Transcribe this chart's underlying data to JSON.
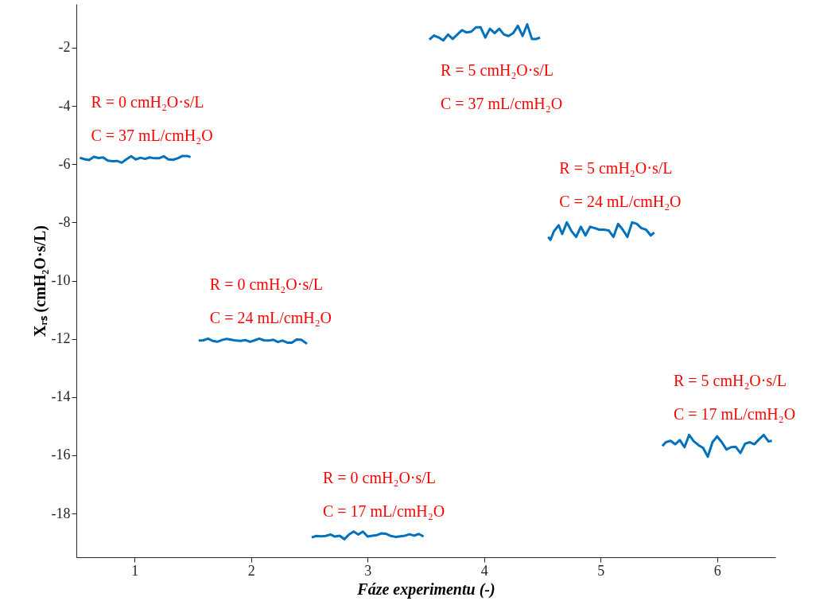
{
  "chart_data": {
    "type": "line",
    "xlabel": "Fáze experimentu (-)",
    "ylabel": "Xᵣₛ (cmH₂O·s/L)",
    "xlim": [
      0.5,
      6.5
    ],
    "ylim": [
      -19.5,
      -0.5
    ],
    "xticks": [
      1,
      2,
      3,
      4,
      5,
      6
    ],
    "yticks": [
      -18,
      -16,
      -14,
      -12,
      -10,
      -8,
      -6,
      -4,
      -2
    ],
    "grid": false,
    "legend": false,
    "marker": "none",
    "line_style": "solid",
    "series": [
      {
        "color": "#0072bd",
        "x": [
          0.53,
          0.57,
          0.61,
          0.65,
          0.69,
          0.73,
          0.77,
          0.81,
          0.85,
          0.89,
          0.93,
          0.97,
          1.01,
          1.05,
          1.09,
          1.13,
          1.17,
          1.21,
          1.25,
          1.29,
          1.33,
          1.37,
          1.41,
          1.45,
          1.48
        ],
        "values": [
          -5.78,
          -5.83,
          -5.86,
          -5.75,
          -5.79,
          -5.77,
          -5.88,
          -5.9,
          -5.89,
          -5.95,
          -5.83,
          -5.73,
          -5.84,
          -5.78,
          -5.82,
          -5.77,
          -5.8,
          -5.8,
          -5.73,
          -5.84,
          -5.85,
          -5.8,
          -5.72,
          -5.72,
          -5.76
        ]
      },
      {
        "color": "#0072bd",
        "x": [
          1.55,
          1.59,
          1.63,
          1.67,
          1.71,
          1.75,
          1.79,
          1.83,
          1.87,
          1.91,
          1.95,
          1.99,
          2.03,
          2.07,
          2.11,
          2.15,
          2.19,
          2.23,
          2.27,
          2.31,
          2.35,
          2.39,
          2.43,
          2.48
        ],
        "values": [
          -12.06,
          -12.05,
          -11.99,
          -12.07,
          -12.1,
          -12.04,
          -12.0,
          -12.03,
          -12.06,
          -12.07,
          -12.04,
          -12.1,
          -12.05,
          -11.99,
          -12.05,
          -12.06,
          -12.03,
          -12.11,
          -12.06,
          -12.13,
          -12.13,
          -12.02,
          -12.03,
          -12.17
        ]
      },
      {
        "color": "#0072bd",
        "x": [
          2.52,
          2.56,
          2.6,
          2.64,
          2.68,
          2.72,
          2.76,
          2.8,
          2.84,
          2.88,
          2.92,
          2.96,
          3.0,
          3.04,
          3.08,
          3.12,
          3.16,
          3.2,
          3.24,
          3.28,
          3.32,
          3.36,
          3.4,
          3.44,
          3.48
        ],
        "values": [
          -18.82,
          -18.77,
          -18.78,
          -18.77,
          -18.72,
          -18.79,
          -18.76,
          -18.88,
          -18.72,
          -18.62,
          -18.72,
          -18.62,
          -18.79,
          -18.76,
          -18.74,
          -18.68,
          -18.7,
          -18.77,
          -18.8,
          -18.78,
          -18.76,
          -18.71,
          -18.76,
          -18.7,
          -18.79
        ]
      },
      {
        "color": "#0072bd",
        "x": [
          3.53,
          3.57,
          3.61,
          3.65,
          3.69,
          3.73,
          3.77,
          3.81,
          3.85,
          3.89,
          3.93,
          3.97,
          4.01,
          4.05,
          4.09,
          4.13,
          4.17,
          4.21,
          4.25,
          4.29,
          4.33,
          4.37,
          4.41,
          4.45,
          4.48
        ],
        "values": [
          -1.72,
          -1.58,
          -1.65,
          -1.75,
          -1.55,
          -1.7,
          -1.55,
          -1.4,
          -1.48,
          -1.45,
          -1.3,
          -1.3,
          -1.65,
          -1.35,
          -1.5,
          -1.35,
          -1.55,
          -1.6,
          -1.5,
          -1.25,
          -1.6,
          -1.2,
          -1.7,
          -1.7,
          -1.65
        ]
      },
      {
        "color": "#0072bd",
        "x": [
          4.55,
          4.57,
          4.6,
          4.64,
          4.67,
          4.71,
          4.75,
          4.79,
          4.83,
          4.87,
          4.91,
          4.95,
          4.99,
          5.03,
          5.07,
          5.11,
          5.15,
          5.19,
          5.23,
          5.27,
          5.31,
          5.35,
          5.39,
          5.43,
          5.46
        ],
        "values": [
          -8.5,
          -8.6,
          -8.3,
          -8.1,
          -8.4,
          -8.0,
          -8.3,
          -8.5,
          -8.15,
          -8.45,
          -8.15,
          -8.2,
          -8.25,
          -8.25,
          -8.28,
          -8.5,
          -8.05,
          -8.25,
          -8.5,
          -8.0,
          -8.05,
          -8.2,
          -8.25,
          -8.45,
          -8.35
        ]
      },
      {
        "color": "#0072bd",
        "x": [
          5.53,
          5.56,
          5.6,
          5.64,
          5.68,
          5.72,
          5.76,
          5.8,
          5.84,
          5.88,
          5.92,
          5.96,
          6.0,
          6.04,
          6.08,
          6.12,
          6.16,
          6.2,
          6.24,
          6.28,
          6.32,
          6.36,
          6.4,
          6.44,
          6.47
        ],
        "values": [
          -15.68,
          -15.55,
          -15.5,
          -15.62,
          -15.48,
          -15.72,
          -15.3,
          -15.52,
          -15.65,
          -15.75,
          -16.05,
          -15.55,
          -15.35,
          -15.55,
          -15.8,
          -15.72,
          -15.71,
          -15.92,
          -15.6,
          -15.55,
          -15.62,
          -15.45,
          -15.3,
          -15.52,
          -15.5
        ]
      }
    ],
    "annotations": [
      "R = 0 cmH₂O·s/L",
      "C = 37 mL/cmH₂O",
      "R = 0 cmH₂O·s/L",
      "C = 24 mL/cmH₂O",
      "R = 0 cmH₂O·s/L",
      "C = 17 mL/cmH₂O",
      "R = 5 cmH₂O·s/L",
      "C = 37 mL/cmH₂O",
      "R = 5 cmH₂O·s/L",
      "C = 24 mL/cmH₂O",
      "R = 5 cmH₂O·s/L",
      "C = 17 mL/cmH₂O"
    ]
  }
}
